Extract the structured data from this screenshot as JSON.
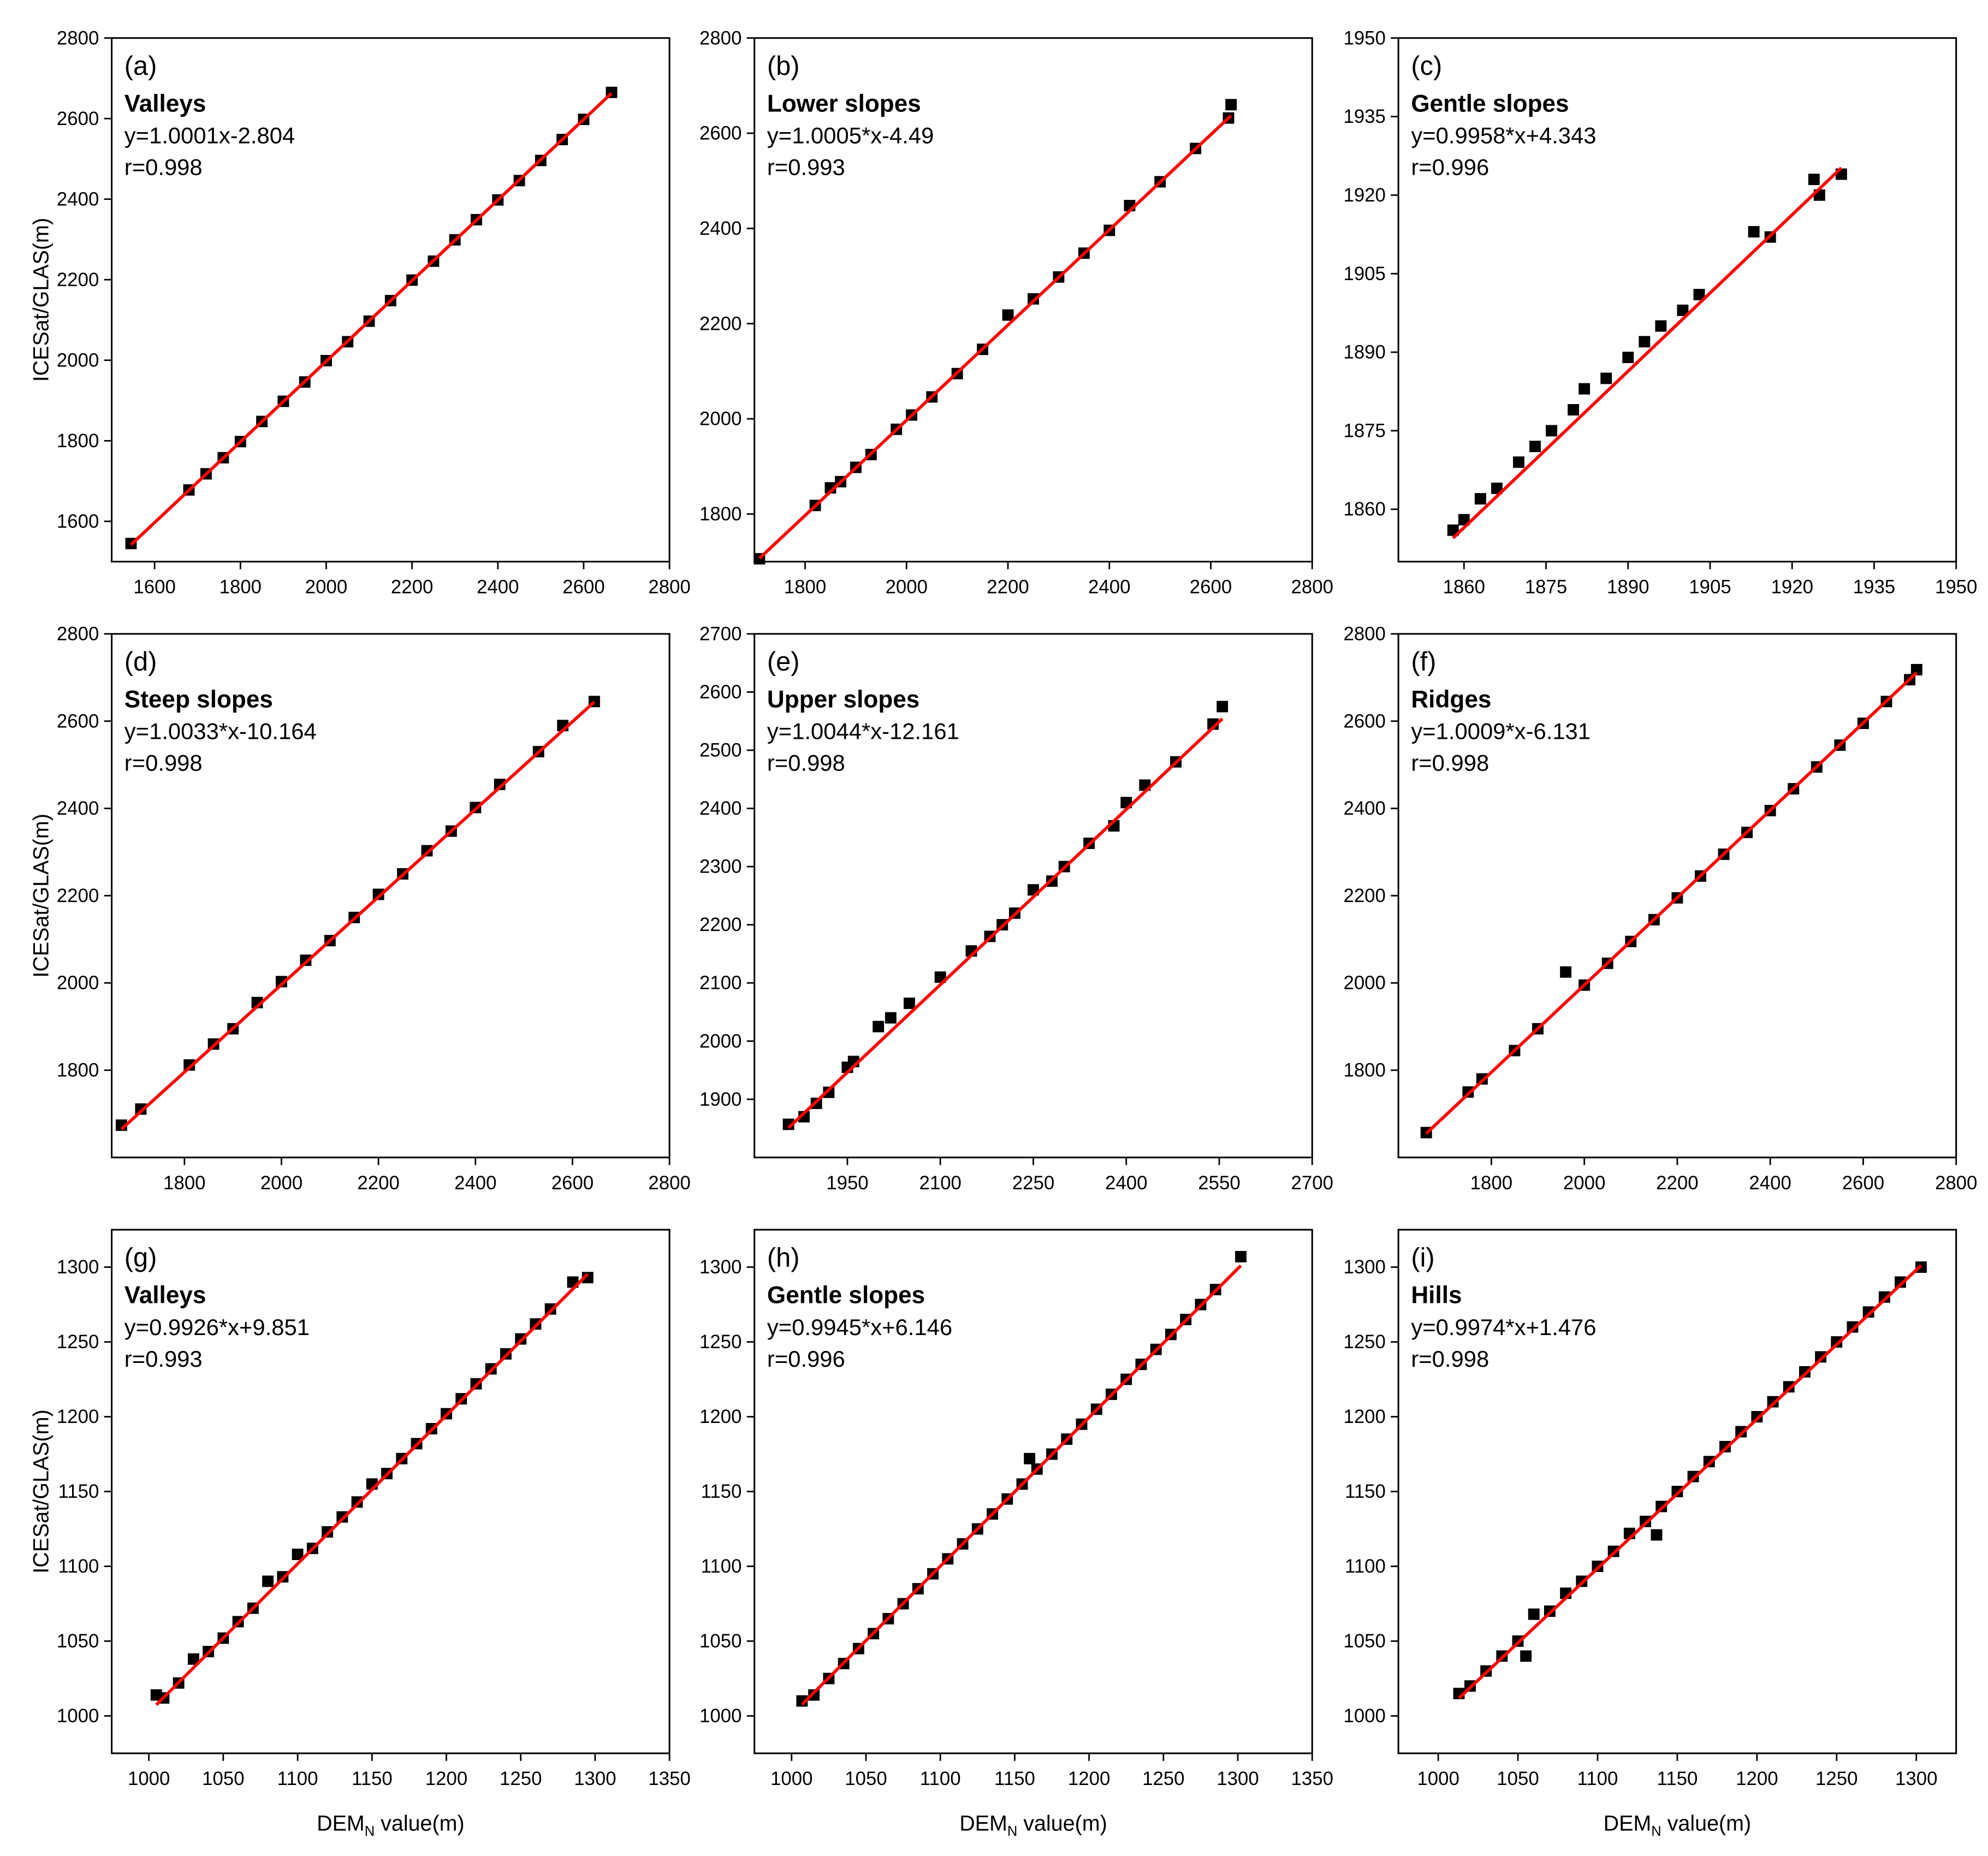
{
  "chart_data": [
    {
      "type": "scatter",
      "panel": "(a)",
      "label": "Valleys",
      "equation": "y=1.0001x-2.804",
      "r": "r=0.998",
      "ylabel": "ICESat/GLAS(m)",
      "color": "#000000",
      "x": [
        1545,
        1680,
        1720,
        1760,
        1800,
        1850,
        1900,
        1950,
        2000,
        2050,
        2100,
        2150,
        2200,
        2250,
        2300,
        2350,
        2400,
        2450,
        2500,
        2550,
        2600,
        2665
      ],
      "values": [
        1545,
        1678,
        1718,
        1758,
        1798,
        1848,
        1898,
        1946,
        1999,
        2046,
        2097,
        2148,
        2199,
        2246,
        2299,
        2349,
        2398,
        2446,
        2496,
        2548,
        2598,
        2665
      ],
      "fit": {
        "x": [
          1545,
          2665
        ],
        "values": [
          1542,
          2663
        ],
        "color": "#ff0000"
      },
      "xlim": [
        1500,
        2800
      ],
      "ylim": [
        1500,
        2800
      ],
      "xticks": [
        1600,
        1800,
        2000,
        2200,
        2400,
        2600,
        2800
      ],
      "yticks": [
        1600,
        1800,
        2000,
        2200,
        2400,
        2600,
        2800
      ]
    },
    {
      "type": "scatter",
      "panel": "(b)",
      "label": "Lower slopes",
      "equation": "y=1.0005*x-4.49",
      "r": "r=0.993",
      "color": "#000000",
      "x": [
        1710,
        1820,
        1850,
        1870,
        1900,
        1930,
        1980,
        2010,
        2050,
        2100,
        2150,
        2200,
        2250,
        2300,
        2350,
        2400,
        2440,
        2500,
        2570,
        2635,
        2640
      ],
      "values": [
        1706,
        1818,
        1855,
        1868,
        1898,
        1925,
        1978,
        2008,
        2046,
        2095,
        2146,
        2218,
        2252,
        2298,
        2348,
        2396,
        2448,
        2498,
        2568,
        2632,
        2660
      ],
      "fit": {
        "x": [
          1710,
          2640
        ],
        "values": [
          1707,
          2637
        ],
        "color": "#ff0000"
      },
      "xlim": [
        1700,
        2800
      ],
      "ylim": [
        1700,
        2800
      ],
      "xticks": [
        1800,
        2000,
        2200,
        2400,
        2600,
        2800
      ],
      "yticks": [
        1800,
        2000,
        2200,
        2400,
        2600,
        2800
      ]
    },
    {
      "type": "scatter",
      "panel": "(c)",
      "label": "Gentle slopes",
      "equation": "y=0.9958*x+4.343",
      "r": "r=0.996",
      "color": "#000000",
      "x": [
        1858,
        1860,
        1863,
        1866,
        1870,
        1873,
        1876,
        1880,
        1882,
        1886,
        1890,
        1893,
        1896,
        1900,
        1903,
        1913,
        1916,
        1924,
        1925,
        1929
      ],
      "values": [
        1856,
        1858,
        1862,
        1864,
        1869,
        1872,
        1875,
        1879,
        1883,
        1885,
        1889,
        1892,
        1895,
        1898,
        1901,
        1913,
        1912,
        1923,
        1920,
        1924
      ],
      "fit": {
        "x": [
          1858,
          1929
        ],
        "values": [
          1854.5,
          1925.2
        ],
        "color": "#ff0000"
      },
      "xlim": [
        1848,
        1950
      ],
      "ylim": [
        1850,
        1950
      ],
      "xticks": [
        1860,
        1875,
        1890,
        1905,
        1920,
        1935,
        1950
      ],
      "yticks": [
        1860,
        1875,
        1890,
        1905,
        1920,
        1935,
        1950
      ]
    },
    {
      "type": "scatter",
      "panel": "(d)",
      "label": "Steep slopes",
      "equation": "y=1.0033*x-10.164",
      "r": "r=0.998",
      "ylabel": "ICESat/GLAS(m)",
      "color": "#000000",
      "x": [
        1670,
        1710,
        1810,
        1860,
        1900,
        1950,
        2000,
        2050,
        2100,
        2150,
        2200,
        2250,
        2300,
        2350,
        2400,
        2450,
        2530,
        2580,
        2645
      ],
      "values": [
        1674,
        1711,
        1812,
        1860,
        1895,
        1955,
        2003,
        2052,
        2097,
        2150,
        2203,
        2250,
        2303,
        2348,
        2402,
        2455,
        2530,
        2590,
        2645
      ],
      "fit": {
        "x": [
          1670,
          2645
        ],
        "values": [
          1665,
          2644
        ],
        "color": "#ff0000"
      },
      "xlim": [
        1650,
        2800
      ],
      "ylim": [
        1600,
        2800
      ],
      "xticks": [
        1800,
        2000,
        2200,
        2400,
        2600,
        2800
      ],
      "yticks": [
        1800,
        2000,
        2200,
        2400,
        2600,
        2800
      ]
    },
    {
      "type": "scatter",
      "panel": "(e)",
      "label": "Upper slopes",
      "equation": "y=1.0044*x-12.161",
      "r": "r=0.998",
      "color": "#000000",
      "x": [
        1855,
        1880,
        1900,
        1920,
        1950,
        1960,
        2000,
        2020,
        2050,
        2100,
        2150,
        2180,
        2200,
        2220,
        2250,
        2280,
        2300,
        2340,
        2380,
        2400,
        2430,
        2480,
        2540,
        2555
      ],
      "values": [
        1857,
        1870,
        1893,
        1912,
        1955,
        1965,
        2025,
        2040,
        2065,
        2110,
        2155,
        2180,
        2200,
        2220,
        2260,
        2275,
        2300,
        2340,
        2370,
        2410,
        2440,
        2480,
        2545,
        2575
      ],
      "fit": {
        "x": [
          1855,
          2555
        ],
        "values": [
          1851,
          2554
        ],
        "color": "#ff0000"
      },
      "xlim": [
        1800,
        2700
      ],
      "ylim": [
        1800,
        2700
      ],
      "xticks": [
        1950,
        2100,
        2250,
        2400,
        2550,
        2700
      ],
      "yticks": [
        1900,
        2000,
        2100,
        2200,
        2300,
        2400,
        2500,
        2600,
        2700
      ]
    },
    {
      "type": "scatter",
      "panel": "(f)",
      "label": "Ridges",
      "equation": "y=1.0009*x-6.131",
      "r": "r=0.998",
      "color": "#000000",
      "x": [
        1660,
        1750,
        1780,
        1850,
        1900,
        1960,
        2000,
        2050,
        2100,
        2150,
        2200,
        2250,
        2300,
        2350,
        2400,
        2450,
        2500,
        2550,
        2600,
        2650,
        2700,
        2715
      ],
      "values": [
        1657,
        1750,
        1780,
        1845,
        1895,
        2025,
        1995,
        2045,
        2095,
        2145,
        2195,
        2245,
        2295,
        2345,
        2395,
        2445,
        2495,
        2545,
        2595,
        2645,
        2695,
        2718
      ],
      "fit": {
        "x": [
          1660,
          2715
        ],
        "values": [
          1655,
          2711
        ],
        "color": "#ff0000"
      },
      "xlim": [
        1600,
        2800
      ],
      "ylim": [
        1600,
        2800
      ],
      "xticks": [
        1800,
        2000,
        2200,
        2400,
        2600,
        2800
      ],
      "yticks": [
        1800,
        2000,
        2200,
        2400,
        2600,
        2800
      ]
    },
    {
      "type": "scatter",
      "panel": "(g)",
      "label": "Valleys",
      "equation": "y=0.9926*x+9.851",
      "r": "r=0.993",
      "ylabel": "ICESat/GLAS(m)",
      "xlabel": [
        "DEM",
        "N",
        " value(m)"
      ],
      "color": "#000000",
      "x": [
        1005,
        1010,
        1020,
        1030,
        1040,
        1050,
        1060,
        1070,
        1080,
        1090,
        1100,
        1110,
        1120,
        1130,
        1140,
        1150,
        1160,
        1170,
        1180,
        1190,
        1200,
        1210,
        1220,
        1230,
        1240,
        1250,
        1260,
        1270,
        1285,
        1295
      ],
      "values": [
        1014,
        1012,
        1022,
        1038,
        1043,
        1052,
        1063,
        1072,
        1090,
        1093,
        1108,
        1112,
        1123,
        1133,
        1143,
        1155,
        1162,
        1172,
        1182,
        1192,
        1202,
        1212,
        1222,
        1232,
        1242,
        1252,
        1262,
        1272,
        1290,
        1293
      ],
      "fit": {
        "x": [
          1005,
          1295
        ],
        "values": [
          1007.4,
          1295.3
        ],
        "color": "#ff0000"
      },
      "xlim": [
        975,
        1350
      ],
      "ylim": [
        975,
        1325
      ],
      "xticks": [
        1000,
        1050,
        1100,
        1150,
        1200,
        1250,
        1300,
        1350
      ],
      "yticks": [
        1000,
        1050,
        1100,
        1150,
        1200,
        1250,
        1300
      ]
    },
    {
      "type": "scatter",
      "panel": "(h)",
      "label": "Gentle slopes",
      "equation": "y=0.9945*x+6.146",
      "r": "r=0.996",
      "xlabel": [
        "DEM",
        "N",
        " value(m)"
      ],
      "color": "#000000",
      "x": [
        1007,
        1015,
        1025,
        1035,
        1045,
        1055,
        1065,
        1075,
        1085,
        1095,
        1105,
        1115,
        1125,
        1135,
        1145,
        1155,
        1160,
        1165,
        1175,
        1185,
        1195,
        1205,
        1215,
        1225,
        1235,
        1245,
        1255,
        1265,
        1275,
        1285,
        1302
      ],
      "values": [
        1010,
        1014,
        1025,
        1035,
        1045,
        1055,
        1065,
        1075,
        1085,
        1095,
        1105,
        1115,
        1125,
        1135,
        1145,
        1155,
        1172,
        1165,
        1175,
        1185,
        1195,
        1205,
        1215,
        1225,
        1235,
        1245,
        1255,
        1265,
        1275,
        1285,
        1307
      ],
      "fit": {
        "x": [
          1007,
          1302
        ],
        "values": [
          1007.6,
          1301.0
        ],
        "color": "#ff0000"
      },
      "xlim": [
        975,
        1350
      ],
      "ylim": [
        975,
        1325
      ],
      "xticks": [
        1000,
        1050,
        1100,
        1150,
        1200,
        1250,
        1300,
        1350
      ],
      "yticks": [
        1000,
        1050,
        1100,
        1150,
        1200,
        1250,
        1300
      ]
    },
    {
      "type": "scatter",
      "panel": "(i)",
      "label": "Hills",
      "equation": "y=0.9974*x+1.476",
      "r": "r=0.998",
      "xlabel": [
        "DEM",
        "N",
        " value(m)"
      ],
      "color": "#000000",
      "x": [
        1013,
        1020,
        1030,
        1040,
        1050,
        1055,
        1060,
        1070,
        1080,
        1090,
        1100,
        1110,
        1120,
        1130,
        1137,
        1140,
        1150,
        1160,
        1170,
        1180,
        1190,
        1200,
        1210,
        1220,
        1230,
        1240,
        1250,
        1260,
        1270,
        1280,
        1290,
        1303
      ],
      "values": [
        1015,
        1020,
        1030,
        1040,
        1050,
        1040,
        1068,
        1070,
        1082,
        1090,
        1100,
        1110,
        1122,
        1130,
        1121,
        1140,
        1150,
        1160,
        1170,
        1180,
        1190,
        1200,
        1210,
        1220,
        1230,
        1240,
        1250,
        1260,
        1270,
        1280,
        1290,
        1300
      ],
      "fit": {
        "x": [
          1013,
          1303
        ],
        "values": [
          1011.9,
          1301.1
        ],
        "color": "#ff0000"
      },
      "xlim": [
        975,
        1325
      ],
      "ylim": [
        975,
        1325
      ],
      "xticks": [
        1000,
        1050,
        1100,
        1150,
        1200,
        1250,
        1300
      ],
      "yticks": [
        1000,
        1050,
        1100,
        1150,
        1200,
        1250,
        1300
      ]
    }
  ]
}
